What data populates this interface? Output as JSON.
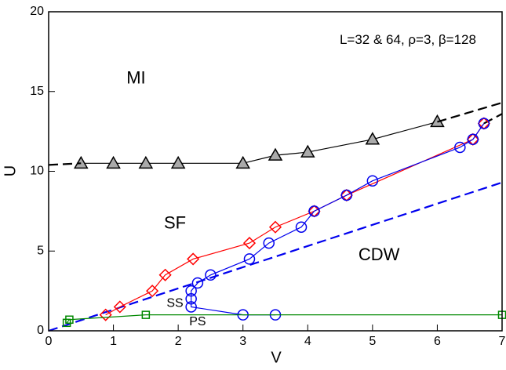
{
  "chart_data": {
    "type": "line",
    "xlabel": "V",
    "ylabel": "U",
    "xlim": [
      0,
      7
    ],
    "ylim": [
      0,
      20
    ],
    "xticks": [
      0,
      1,
      2,
      3,
      4,
      5,
      6,
      7
    ],
    "yticks": [
      0,
      5,
      10,
      15,
      20
    ],
    "annotations": [
      {
        "text": "L=32 & 64, ρ=3, β=128",
        "x": 6.6,
        "y": 18.2
      },
      {
        "text": "MI",
        "x": 1.35,
        "y": 15.8
      },
      {
        "text": "SF",
        "x": 1.95,
        "y": 6.7
      },
      {
        "text": "CDW",
        "x": 5.1,
        "y": 4.7
      },
      {
        "text": "SS",
        "x": 1.95,
        "y": 1.7
      },
      {
        "text": "PS",
        "x": 2.3,
        "y": 0.55
      }
    ],
    "series": [
      {
        "color": "#000000",
        "marker": "triangle",
        "fill": "#aaaaaa",
        "dash": false,
        "x": [
          0.5,
          1,
          1.5,
          2,
          3,
          3.5,
          4,
          5,
          6
        ],
        "values": [
          10.5,
          10.5,
          10.5,
          10.5,
          10.5,
          11,
          11.2,
          12,
          13.1
        ]
      },
      {
        "color": "#000000",
        "marker": "none",
        "dash": true,
        "x": [
          0,
          0.5
        ],
        "values": [
          10.4,
          10.5
        ]
      },
      {
        "color": "#000000",
        "marker": "none",
        "dash": true,
        "x": [
          6,
          7
        ],
        "values": [
          13.1,
          14.3
        ]
      },
      {
        "color": "#000000",
        "marker": "none",
        "dash": true,
        "x": [
          6.72,
          7
        ],
        "values": [
          13,
          13.6
        ]
      },
      {
        "color": "#0000ee",
        "marker": "none",
        "dash": true,
        "x": [
          0,
          7
        ],
        "values": [
          0,
          9.3
        ]
      },
      {
        "color": "#ff0000",
        "marker": "diamond",
        "dash": false,
        "x": [
          0.88,
          1.1,
          1.6,
          1.8,
          2.23,
          3.1,
          3.5,
          4.1,
          4.6,
          6.55,
          6.72
        ],
        "values": [
          1,
          1.5,
          2.5,
          3.5,
          4.5,
          5.5,
          6.5,
          7.5,
          8.5,
          12,
          13
        ]
      },
      {
        "color": "#0000ee",
        "marker": "circle",
        "dash": false,
        "x": [
          3.5,
          3,
          2.2,
          2.2,
          2.2,
          2.3,
          2.5,
          3.1,
          3.4,
          3.9,
          4.1,
          4.6,
          5,
          6.35,
          6.55,
          6.72
        ],
        "values": [
          1,
          1,
          1.5,
          2,
          2.5,
          3,
          3.5,
          4.5,
          5.5,
          6.5,
          7.5,
          8.5,
          9.4,
          11.5,
          12,
          13
        ]
      },
      {
        "color": "#008800",
        "marker": "square",
        "dash": false,
        "x": [
          0.28,
          0.32,
          1.5,
          7
        ],
        "values": [
          0.5,
          0.7,
          1,
          1
        ]
      }
    ]
  }
}
